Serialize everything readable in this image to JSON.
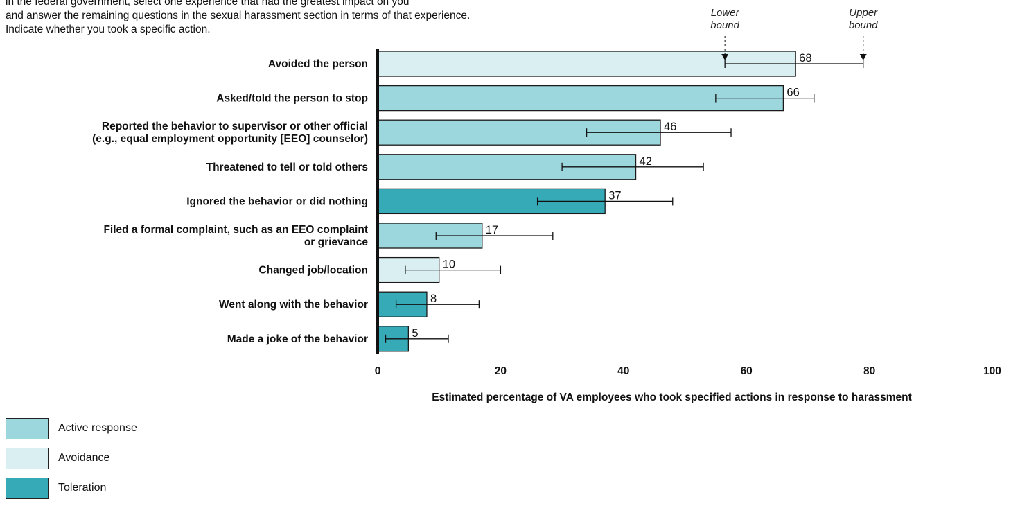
{
  "intro": {
    "lines": [
      "in the federal government, select one experience that had the greatest impact on you",
      "and answer the remaining questions in the sexual harassment section in terms of that experience.",
      "Indicate whether you took a specific action."
    ]
  },
  "colors": {
    "active": "#9dd7de",
    "avoidance": "#daeff1",
    "toleration": "#36abb7",
    "stroke": "#1a1a1a"
  },
  "chart_data": {
    "type": "bar",
    "orientation": "horizontal",
    "xlabel": "Estimated percentage of VA employees who took specified actions in response to harassment",
    "xlim": [
      0,
      100
    ],
    "xticks": [
      "0",
      "20",
      "40",
      "60",
      "80",
      "100"
    ],
    "error_bar_labels": {
      "lower": [
        "Lower",
        "bound"
      ],
      "upper": [
        "Upper",
        "bound"
      ]
    },
    "categories": [
      [
        "Avoided the person"
      ],
      [
        "Asked/told the person to stop"
      ],
      [
        "Reported the behavior to supervisor or other official",
        "(e.g., equal employment opportunity [EEO] counselor)"
      ],
      [
        "Threatened to tell or told others"
      ],
      [
        "Ignored the behavior or did nothing"
      ],
      [
        "Filed a formal complaint, such as an EEO complaint",
        "or grievance"
      ],
      [
        "Changed job/location"
      ],
      [
        "Went along with the behavior"
      ],
      [
        "Made a joke of the behavior"
      ]
    ],
    "values": [
      68,
      66,
      46,
      42,
      37,
      17,
      10,
      8,
      5
    ],
    "value_labels": [
      "68",
      "66",
      "46",
      "42",
      "37",
      "17",
      "10",
      "8",
      "5"
    ],
    "lower": [
      56.5,
      55,
      34,
      30,
      26,
      9.5,
      4.5,
      3,
      1.3
    ],
    "upper": [
      79,
      71,
      57.5,
      53,
      48,
      28.5,
      20,
      16.5,
      11.5
    ],
    "groups": [
      "avoidance",
      "active",
      "active",
      "active",
      "toleration",
      "active",
      "avoidance",
      "toleration",
      "toleration"
    ],
    "legend": [
      {
        "key": "active",
        "label": "Active response"
      },
      {
        "key": "avoidance",
        "label": "Avoidance"
      },
      {
        "key": "toleration",
        "label": "Toleration"
      }
    ]
  }
}
